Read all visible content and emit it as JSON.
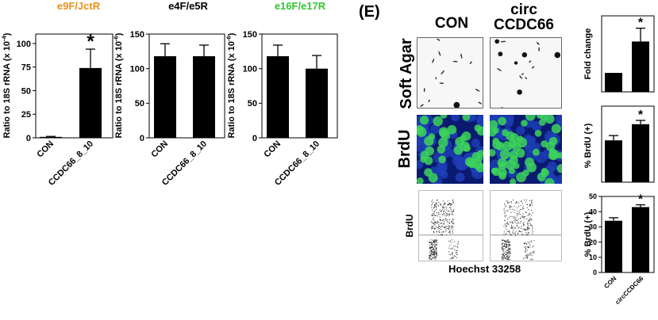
{
  "panel_letter": "(E)",
  "image_panels": {
    "col_con": "CON",
    "col_circ_line1": "circ",
    "col_circ_line2": "CCDC66",
    "row_soft_agar": "Soft Agar",
    "row_brdu": "BrdU",
    "facs_ylabel": "BrdU",
    "facs_xlabel": "Hoechst 33258"
  },
  "colors": {
    "bar": "#000000",
    "title_orange": "#e8901a",
    "title_green": "#2ec830",
    "brdu_bg": "#0a1a70",
    "brdu_cells": "#3cd45a"
  },
  "chart_data": [
    {
      "type": "bar",
      "title": "e9F/JctR",
      "title_color": "#e8901a",
      "ylabel": "Ratio to 18S rRNA (x 10^-4)",
      "categories": [
        "CON",
        "CCDC66_8_10"
      ],
      "values": [
        1,
        74
      ],
      "errors": [
        0.5,
        20
      ],
      "significance": [
        "",
        "*"
      ],
      "yticks": [
        0,
        25,
        50,
        75,
        100
      ],
      "ylim": [
        0,
        110
      ]
    },
    {
      "type": "bar",
      "title": "e4F/e5R",
      "title_color": "#000000",
      "ylabel": "Ratio to 18S rRNA (x 10^-6)",
      "categories": [
        "CON",
        "CCDC66_8_10"
      ],
      "values": [
        118,
        118
      ],
      "errors": [
        18,
        16
      ],
      "significance": [
        "",
        ""
      ],
      "yticks": [
        0,
        50,
        100,
        150
      ],
      "ylim": [
        0,
        150
      ]
    },
    {
      "type": "bar",
      "title": "e16F/e17R",
      "title_color": "#2ec830",
      "ylabel": "Ratio to 18S rRNA (x 10^-6)",
      "categories": [
        "CON",
        "CCDC66_8_10"
      ],
      "values": [
        118,
        100
      ],
      "errors": [
        16,
        19
      ],
      "significance": [
        "",
        ""
      ],
      "yticks": [
        0,
        50,
        100,
        150
      ],
      "ylim": [
        0,
        150
      ]
    },
    {
      "type": "bar",
      "title": "",
      "ylabel": "Fold change",
      "categories": [
        "CON",
        "circCCDC66"
      ],
      "values": [
        1,
        2.65
      ],
      "errors": [
        0,
        0.7
      ],
      "significance": [
        "",
        "*"
      ],
      "yticks": [],
      "ylim": [
        0,
        4
      ]
    },
    {
      "type": "bar",
      "title": "",
      "ylabel": "% BrdU (+)",
      "categories": [
        "CON",
        "circCCDC66"
      ],
      "values": [
        44,
        61
      ],
      "errors": [
        5,
        4
      ],
      "significance": [
        "",
        "*"
      ],
      "yticks": [],
      "ylim": [
        0,
        80
      ]
    },
    {
      "type": "bar",
      "title": "",
      "ylabel": "% BrdU (+)",
      "categories": [
        "CON",
        "circCCDC66"
      ],
      "values": [
        34,
        43
      ],
      "errors": [
        2,
        1.5
      ],
      "significance": [
        "",
        "*"
      ],
      "yticks": [
        0,
        10,
        20,
        30,
        40,
        50
      ],
      "ylim": [
        0,
        50
      ]
    }
  ]
}
